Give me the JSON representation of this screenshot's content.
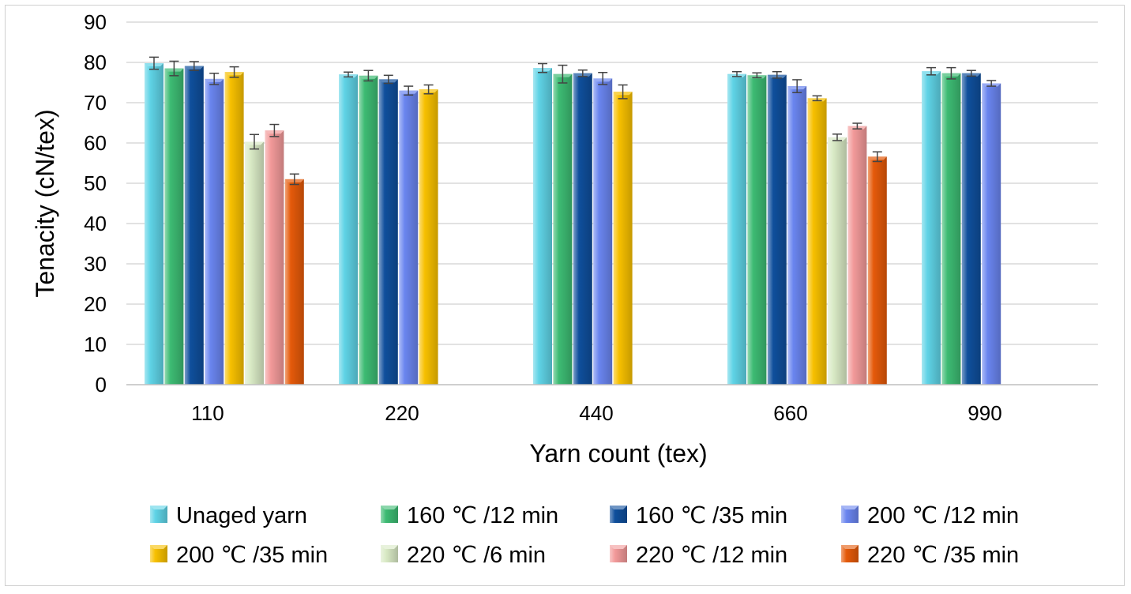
{
  "chart_data": {
    "type": "bar",
    "title": "",
    "xlabel": "Yarn count (tex)",
    "ylabel": "Tenacity (cN/tex)",
    "ylim": [
      0,
      90
    ],
    "ytick_step": 10,
    "grid": true,
    "legend_position": "bottom",
    "categories": [
      "110",
      "220",
      "440",
      "660",
      "990"
    ],
    "series": [
      {
        "name": "Unaged yarn",
        "color": "#5fd3e6",
        "values": [
          79.8,
          77.0,
          78.6,
          77.1,
          77.8
        ],
        "errors": [
          1.5,
          0.6,
          1.1,
          0.6,
          0.9
        ]
      },
      {
        "name": "160 ℃ /12 min",
        "color": "#3dbb73",
        "values": [
          78.5,
          76.7,
          77.1,
          76.8,
          77.3
        ],
        "errors": [
          1.8,
          1.3,
          2.2,
          0.6,
          1.4
        ]
      },
      {
        "name": "160 ℃ /35 min",
        "color": "#0f4f9c",
        "values": [
          79.1,
          75.8,
          77.3,
          76.9,
          77.3
        ],
        "errors": [
          1.1,
          1.0,
          0.8,
          0.8,
          0.7
        ]
      },
      {
        "name": "200 ℃ /12 min",
        "color": "#6a85ef",
        "values": [
          75.9,
          73.0,
          76.0,
          74.1,
          74.8
        ],
        "errors": [
          1.4,
          1.1,
          1.5,
          1.6,
          0.7
        ]
      },
      {
        "name": "200 ℃ /35 min",
        "color": "#f7c000",
        "values": [
          77.6,
          73.3,
          72.7,
          71.1,
          null
        ],
        "errors": [
          1.3,
          1.1,
          1.7,
          0.6,
          null
        ]
      },
      {
        "name": "220 ℃ /6 min",
        "color": "#d9eac5",
        "values": [
          60.3,
          null,
          null,
          61.4,
          null
        ],
        "errors": [
          1.8,
          null,
          null,
          0.8,
          null
        ]
      },
      {
        "name": "220 ℃ /12 min",
        "color": "#f29a9a",
        "values": [
          63.1,
          null,
          null,
          64.2,
          null
        ],
        "errors": [
          1.5,
          null,
          null,
          0.7,
          null
        ]
      },
      {
        "name": "220 ℃ /35 min",
        "color": "#e55a0a",
        "values": [
          51.0,
          null,
          null,
          56.6,
          null
        ],
        "errors": [
          1.3,
          null,
          null,
          1.2,
          null
        ]
      }
    ]
  }
}
